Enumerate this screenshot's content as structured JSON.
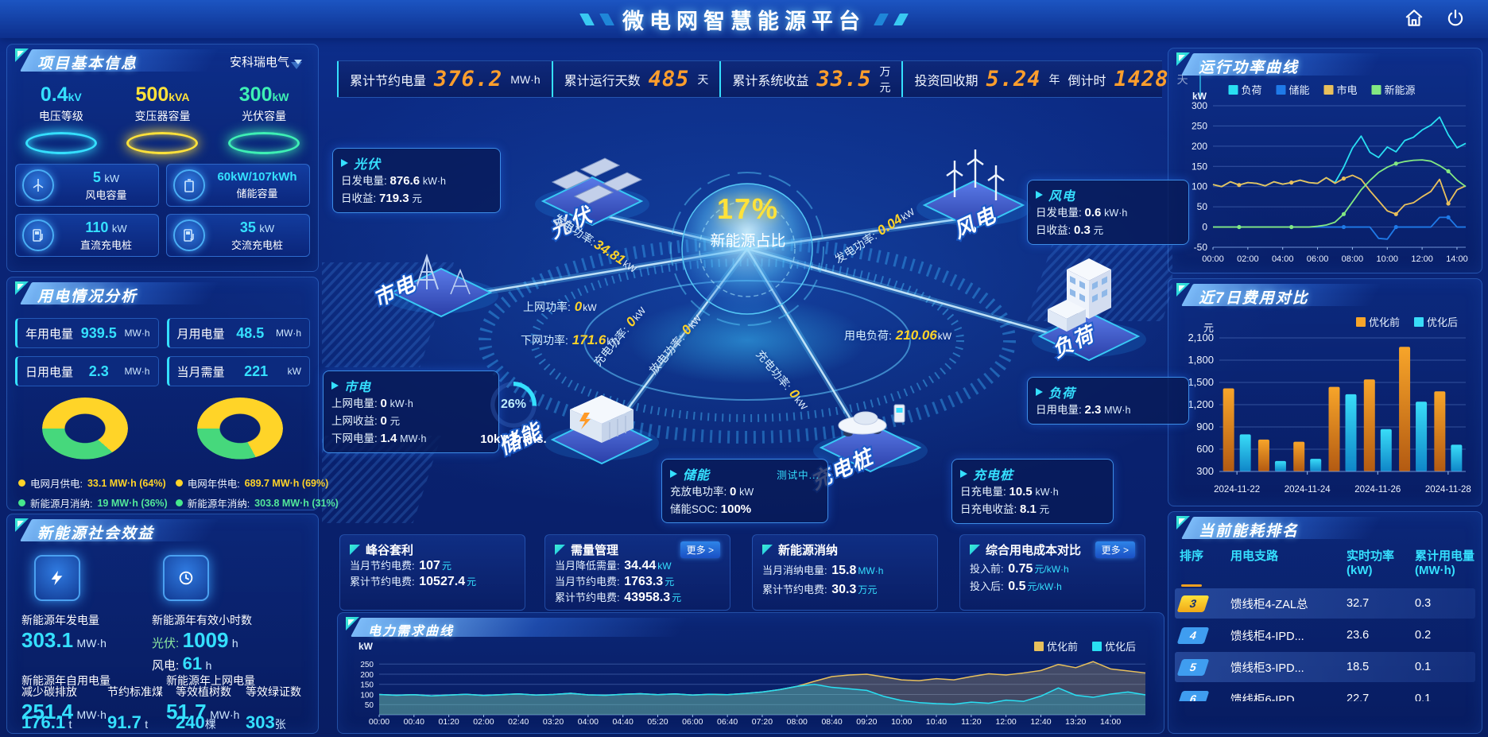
{
  "header": {
    "title": "微电网智慧能源平台"
  },
  "kpis": [
    {
      "label": "累计节约电量",
      "value": "376.2",
      "unit": "MW·h"
    },
    {
      "label": "累计运行天数",
      "value": "485",
      "unit": "天"
    },
    {
      "label": "累计系统收益",
      "value": "33.5",
      "unit": "万元"
    },
    {
      "label": "投资回收期",
      "value": "5.24",
      "unit": "年"
    },
    {
      "label": "倒计时",
      "value": "1428",
      "unit": "天"
    }
  ],
  "project": {
    "title": "项目基本信息",
    "company": "安科瑞电气",
    "spotlights": [
      {
        "value": "0.4",
        "unit": "kV",
        "label": "电压等级"
      },
      {
        "value": "500",
        "unit": "kVA",
        "label": "变压器容量"
      },
      {
        "value": "300",
        "unit": "kW",
        "label": "光伏容量"
      }
    ],
    "stats": [
      {
        "value": "5",
        "unit": "kW",
        "label": "风电容量"
      },
      {
        "value": "60kW/107kWh",
        "unit": "",
        "label": "储能容量"
      },
      {
        "value": "110",
        "unit": "kW",
        "label": "直流充电桩"
      },
      {
        "value": "35",
        "unit": "kW",
        "label": "交流充电桩"
      }
    ]
  },
  "usage": {
    "title": "用电情况分析",
    "stats": [
      {
        "label": "年用电量",
        "value": "939.5",
        "unit": "MW·h"
      },
      {
        "label": "月用电量",
        "value": "48.5",
        "unit": "MW·h"
      },
      {
        "label": "日用电量",
        "value": "2.3",
        "unit": "MW·h"
      },
      {
        "label": "当月需量",
        "value": "221",
        "unit": "kW"
      }
    ],
    "donuts": [
      {
        "grid_pct": 64,
        "new_pct": 36
      },
      {
        "grid_pct": 69,
        "new_pct": 31
      }
    ],
    "legend": [
      {
        "label": "电网月供电:",
        "value": "33.1 MW·h (64%)"
      },
      {
        "label": "新能源月消纳:",
        "value": "19 MW·h (36%)"
      },
      {
        "label": "电网年供电:",
        "value": "689.7 MW·h (69%)"
      },
      {
        "label": "新能源年消纳:",
        "value": "303.8 MW·h (31%)"
      }
    ]
  },
  "benefits": {
    "title": "新能源社会效益",
    "gen_label": "新能源年发电量",
    "gen_value": "303.1",
    "gen_unit": "MW·h",
    "hours_label": "新能源年有效小时数",
    "pv_label": "光伏:",
    "pv_value": "1009",
    "pv_unit": "h",
    "wind_label": "风电:",
    "wind_value": "61",
    "wind_unit": "h",
    "self_label": "新能源年自用电量",
    "self_value": "251.4",
    "self_unit": "MW·h",
    "grid_label": "新能源年上网电量",
    "grid_value": "51.7",
    "grid_unit": "MW·h",
    "co2_label": "减少碳排放",
    "co2_value": "176.1",
    "co2_unit": "t",
    "coal_label": "节约标准煤",
    "coal_value": "91.7",
    "coal_unit": "t",
    "trees_label": "等效植树数",
    "trees_value": "240",
    "trees_unit": "棵",
    "certs_label": "等效绿证数",
    "certs_value": "303",
    "certs_unit": "张"
  },
  "center": {
    "orb_pct": "17%",
    "orb_label": "新能源占比",
    "nodes": [
      "光伏",
      "市电",
      "储能",
      "充电桩",
      "风电",
      "负荷"
    ],
    "soc": {
      "value": "26%",
      "label": "10kV Trans."
    },
    "flows": [
      {
        "label": "发电功率:",
        "value": "34.81",
        "unit": "kW"
      },
      {
        "label": "上网功率:",
        "value": "0",
        "unit": "kW"
      },
      {
        "label": "下网功率:",
        "value": "171.6",
        "unit": "kW"
      },
      {
        "label": "充电功率:",
        "value": "0",
        "unit": "kW"
      },
      {
        "label": "放电功率:",
        "value": "0",
        "unit": "kW"
      },
      {
        "label": "充电功率:",
        "value": "0",
        "unit": "kW"
      },
      {
        "label": "发电功率:",
        "value": "0.04",
        "unit": "kW"
      },
      {
        "label": "用电负荷:",
        "value": "210.06",
        "unit": "kW"
      }
    ],
    "callouts": {
      "pv": {
        "title": "光伏",
        "rows": [
          {
            "l": "日发电量:",
            "v": "876.6",
            "u": "kW·h"
          },
          {
            "l": "日收益:",
            "v": "719.3",
            "u": "元"
          }
        ]
      },
      "wind": {
        "title": "风电",
        "rows": [
          {
            "l": "日发电量:",
            "v": "0.6",
            "u": "kW·h"
          },
          {
            "l": "日收益:",
            "v": "0.3",
            "u": "元"
          }
        ]
      },
      "mains": {
        "title": "市电",
        "rows": [
          {
            "l": "上网电量:",
            "v": "0",
            "u": "kW·h"
          },
          {
            "l": "上网收益:",
            "v": "0",
            "u": "元"
          },
          {
            "l": "下网电量:",
            "v": "1.4",
            "u": "MW·h"
          }
        ]
      },
      "storage": {
        "title": "储能",
        "badge": "测试中...",
        "rows": [
          {
            "l": "充放电功率:",
            "v": "0",
            "u": "kW"
          },
          {
            "l": "储能SOC:",
            "v": "100%",
            "u": ""
          }
        ]
      },
      "charger": {
        "title": "充电桩",
        "rows": [
          {
            "l": "日充电量:",
            "v": "10.5",
            "u": "kW·h"
          },
          {
            "l": "日充电收益:",
            "v": "8.1",
            "u": "元"
          }
        ]
      },
      "load": {
        "title": "负荷",
        "rows": [
          {
            "l": "日用电量:",
            "v": "2.3",
            "u": "MW·h"
          }
        ]
      }
    }
  },
  "cards": [
    {
      "title": "峰谷套利",
      "rows": [
        {
          "l": "当月节约电费:",
          "v": "107",
          "u": "元"
        },
        {
          "l": "累计节约电费:",
          "v": "10527.4",
          "u": "元"
        }
      ]
    },
    {
      "title": "需量管理",
      "more": "更多 >",
      "rows": [
        {
          "l": "当月降低需量:",
          "v": "34.44",
          "u": "kW"
        },
        {
          "l": "当月节约电费:",
          "v": "1763.3",
          "u": "元"
        },
        {
          "l": "累计节约电费:",
          "v": "43958.3",
          "u": "元"
        }
      ]
    },
    {
      "title": "新能源消纳",
      "rows": [
        {
          "l": "当月消纳电量:",
          "v": "15.8",
          "u": "MW·h"
        },
        {
          "l": "累计节约电费:",
          "v": "30.3",
          "u": "万元"
        }
      ]
    },
    {
      "title": "综合用电成本对比",
      "more": "更多 >",
      "rows": [
        {
          "l": "投入前:",
          "v": "0.75",
          "u": "元/kW·h"
        },
        {
          "l": "投入后:",
          "v": "0.5",
          "u": "元/kW·h"
        }
      ]
    }
  ],
  "ranking": {
    "title": "当前能耗排名",
    "columns": [
      {
        "t": "排序",
        "u": ""
      },
      {
        "t": "用电支路",
        "u": ""
      },
      {
        "t": "实时功率",
        "u": "(kW)"
      },
      {
        "t": "累计用电量",
        "u": "(MW·h)"
      }
    ],
    "rows": [
      {
        "rank": "3",
        "name": "馈线柜4-ZAL总",
        "power": "32.7",
        "energy": "0.3"
      },
      {
        "rank": "4",
        "name": "馈线柜4-IPD...",
        "power": "23.6",
        "energy": "0.2"
      },
      {
        "rank": "5",
        "name": "馈线柜3-IPD...",
        "power": "18.5",
        "energy": "0.1"
      },
      {
        "rank": "6",
        "name": "馈线柜6-IPD",
        "power": "22.7",
        "energy": "0.1"
      }
    ]
  },
  "panels": {
    "run_title": "运行功率曲线",
    "cost_title": "近7日费用对比",
    "demand_title": "电力需求曲线",
    "rank_title": "当前能耗排名"
  },
  "chart_data": [
    {
      "id": "run-power",
      "type": "line",
      "title": "运行功率曲线",
      "ylabel": "kW",
      "ylim": [
        -50,
        300
      ],
      "yticks": [
        -50,
        0,
        50,
        100,
        150,
        200,
        250,
        300
      ],
      "xtick_labels": [
        "00:00",
        "02:00",
        "04:00",
        "06:00",
        "08:00",
        "10:00",
        "12:00",
        "14:00"
      ],
      "xtick_step_frac": 0.1379,
      "legend_position": "top-center",
      "grid": true,
      "series": [
        {
          "name": "负荷",
          "color": "#29dff2",
          "values": [
            105,
            100,
            112,
            104,
            110,
            108,
            102,
            112,
            106,
            110,
            116,
            110,
            108,
            122,
            110,
            148,
            195,
            225,
            185,
            172,
            198,
            186,
            214,
            222,
            240,
            252,
            272,
            228,
            196,
            207
          ]
        },
        {
          "name": "储能",
          "color": "#1f7ae8",
          "markers": true,
          "values": [
            0,
            0,
            0,
            0,
            0,
            0,
            0,
            0,
            0,
            0,
            0,
            0,
            0,
            0,
            0,
            0,
            0,
            0,
            0,
            -28,
            -30,
            0,
            0,
            0,
            0,
            0,
            24,
            24,
            0,
            0
          ]
        },
        {
          "name": "市电",
          "color": "#e8c05c",
          "markers": true,
          "values": [
            105,
            100,
            112,
            104,
            110,
            108,
            102,
            112,
            106,
            110,
            116,
            110,
            108,
            122,
            108,
            120,
            128,
            118,
            90,
            65,
            40,
            32,
            55,
            60,
            75,
            88,
            118,
            58,
            92,
            102
          ]
        },
        {
          "name": "新能源",
          "color": "#82e882",
          "markers": true,
          "values": [
            0,
            0,
            0,
            0,
            0,
            0,
            0,
            0,
            0,
            0,
            0,
            0,
            2,
            5,
            12,
            32,
            62,
            92,
            115,
            135,
            148,
            157,
            162,
            165,
            166,
            163,
            152,
            138,
            116,
            100
          ]
        }
      ]
    },
    {
      "id": "cost-7day",
      "type": "bar",
      "title": "近7日费用对比",
      "unit": "元",
      "ylim": [
        300,
        2100
      ],
      "yticks": [
        300,
        600,
        900,
        1200,
        1500,
        1800,
        2100
      ],
      "categories": [
        "2024-11-22",
        "2024-11-23",
        "2024-11-24",
        "2024-11-25",
        "2024-11-26",
        "2024-11-27",
        "2024-11-28"
      ],
      "xtick_labels": [
        "2024-11-22",
        "2024-11-24",
        "2024-11-26",
        "2024-11-28"
      ],
      "xtick_positions": [
        0,
        2,
        4,
        6
      ],
      "legend_position": "top-right",
      "grid": true,
      "series": [
        {
          "name": "优化前",
          "color_top": "#f7a52a",
          "color_bottom": "#b35a12",
          "values": [
            1420,
            730,
            700,
            1440,
            1540,
            1980,
            1380
          ]
        },
        {
          "name": "优化后",
          "color_top": "#39dcf8",
          "color_bottom": "#0f86c8",
          "values": [
            800,
            440,
            470,
            1340,
            870,
            1240,
            660
          ]
        }
      ]
    },
    {
      "id": "power-demand",
      "type": "area",
      "title": "电力需求曲线",
      "ylabel": "kW",
      "ylim": [
        0,
        290
      ],
      "yticks": [
        50,
        100,
        150,
        200,
        250
      ],
      "xtick_labels": [
        "00:00",
        "00:40",
        "01:20",
        "02:00",
        "02:40",
        "03:20",
        "04:00",
        "04:40",
        "05:20",
        "06:00",
        "06:40",
        "07:20",
        "08:00",
        "08:40",
        "09:20",
        "10:00",
        "10:40",
        "11:20",
        "12:00",
        "12:40",
        "13:20",
        "14:00"
      ],
      "xtick_step_frac": 0.04545,
      "legend_position": "top-right",
      "grid": true,
      "series": [
        {
          "name": "优化前",
          "color": "#e8c05c",
          "values": [
            100,
            96,
            99,
            93,
            97,
            101,
            95,
            99,
            103,
            97,
            100,
            106,
            98,
            96,
            101,
            104,
            99,
            103,
            97,
            101,
            99,
            105,
            112,
            124,
            140,
            165,
            188,
            196,
            200,
            186,
            172,
            168,
            178,
            172,
            188,
            202,
            196,
            206,
            218,
            248,
            232,
            262,
            226,
            216,
            206
          ]
        },
        {
          "name": "优化后",
          "color": "#29dff2",
          "values": [
            100,
            96,
            99,
            93,
            97,
            101,
            95,
            99,
            103,
            97,
            100,
            106,
            98,
            96,
            101,
            104,
            99,
            103,
            97,
            101,
            99,
            105,
            112,
            124,
            140,
            150,
            135,
            128,
            120,
            90,
            70,
            60,
            55,
            52,
            62,
            57,
            72,
            66,
            92,
            132,
            96,
            86,
            102,
            112,
            98
          ]
        }
      ]
    }
  ]
}
